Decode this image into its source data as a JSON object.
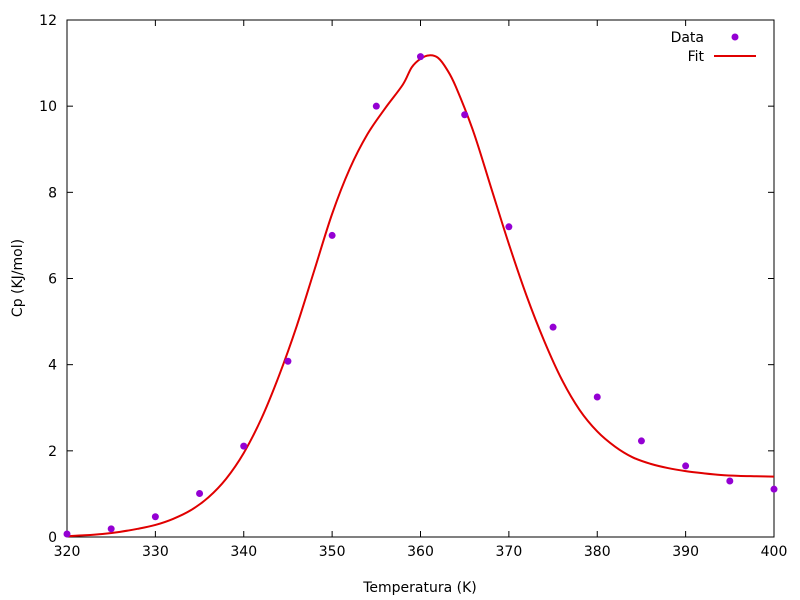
{
  "chart_data": {
    "type": "scatter",
    "title": "",
    "xlabel": "Temperatura (K)",
    "ylabel": "Cp (KJ/mol)",
    "xlim": [
      320,
      400
    ],
    "ylim": [
      0,
      12
    ],
    "xticks": [
      320,
      330,
      340,
      350,
      360,
      370,
      380,
      390,
      400
    ],
    "yticks": [
      0,
      2,
      4,
      6,
      8,
      10,
      12
    ],
    "grid": false,
    "legend": "top-right",
    "series": [
      {
        "name": "Data",
        "kind": "points",
        "color": "#9400d3",
        "x": [
          320,
          325,
          330,
          335,
          340,
          345,
          350,
          355,
          360,
          365,
          370,
          375,
          380,
          385,
          390,
          395,
          400
        ],
        "y": [
          0.07,
          0.19,
          0.47,
          1.01,
          2.11,
          4.08,
          7.0,
          10.0,
          11.15,
          9.8,
          7.2,
          4.87,
          3.25,
          2.23,
          1.65,
          1.3,
          1.11
        ]
      },
      {
        "name": "Fit",
        "kind": "line",
        "color": "#e00000",
        "x": [
          320,
          322,
          324,
          326,
          328,
          330,
          332,
          334,
          336,
          338,
          340,
          342,
          344,
          346,
          348,
          350,
          352,
          354,
          356,
          358,
          359,
          360,
          361,
          362,
          363,
          364,
          366,
          368,
          370,
          372,
          374,
          376,
          378,
          380,
          382,
          384,
          386,
          388,
          390,
          392,
          394,
          396,
          398,
          400
        ],
        "y": [
          0.02,
          0.04,
          0.07,
          0.12,
          0.19,
          0.28,
          0.42,
          0.62,
          0.92,
          1.35,
          1.95,
          2.75,
          3.75,
          4.9,
          6.2,
          7.5,
          8.55,
          9.35,
          9.95,
          10.5,
          10.9,
          11.1,
          11.18,
          11.12,
          10.85,
          10.45,
          9.4,
          8.1,
          6.8,
          5.6,
          4.55,
          3.65,
          2.95,
          2.45,
          2.1,
          1.85,
          1.7,
          1.6,
          1.53,
          1.48,
          1.44,
          1.42,
          1.41,
          1.4
        ]
      }
    ]
  }
}
